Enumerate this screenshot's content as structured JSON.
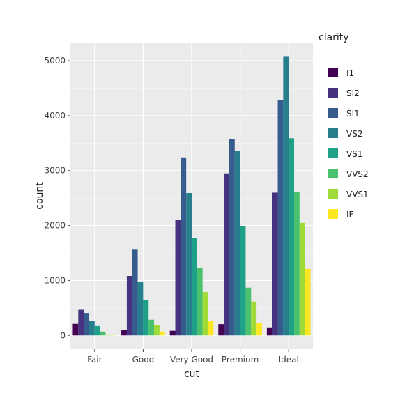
{
  "chart_data": {
    "type": "bar",
    "layout": "dodged",
    "xlabel": "cut",
    "ylabel": "count",
    "categories": [
      "Fair",
      "Good",
      "Very Good",
      "Premium",
      "Ideal"
    ],
    "yticks": [
      0,
      1000,
      2000,
      3000,
      4000,
      5000
    ],
    "ytick_labels": [
      "0",
      "1000",
      "2000",
      "3000",
      "4000",
      "5000"
    ],
    "ylim": [
      -250,
      5330
    ],
    "grid": true,
    "legend_position": "right",
    "legend_title": "clarity",
    "series": [
      {
        "name": "I1",
        "color": "#440154",
        "values": [
          210,
          96,
          84,
          205,
          146
        ]
      },
      {
        "name": "SI2",
        "color": "#46327e",
        "values": [
          466,
          1081,
          2100,
          2949,
          2598
        ]
      },
      {
        "name": "SI1",
        "color": "#365c8d",
        "values": [
          408,
          1560,
          3240,
          3575,
          4282
        ]
      },
      {
        "name": "VS2",
        "color": "#277f8e",
        "values": [
          261,
          978,
          2591,
          3357,
          5071
        ]
      },
      {
        "name": "VS1",
        "color": "#1fa187",
        "values": [
          170,
          648,
          1775,
          1989,
          3589
        ]
      },
      {
        "name": "VVS2",
        "color": "#4ac16d",
        "values": [
          69,
          286,
          1235,
          870,
          2606
        ]
      },
      {
        "name": "VVS1",
        "color": "#a0da39",
        "values": [
          17,
          186,
          789,
          616,
          2047
        ]
      },
      {
        "name": "IF",
        "color": "#fde725",
        "values": [
          9,
          71,
          268,
          230,
          1212
        ]
      }
    ]
  }
}
